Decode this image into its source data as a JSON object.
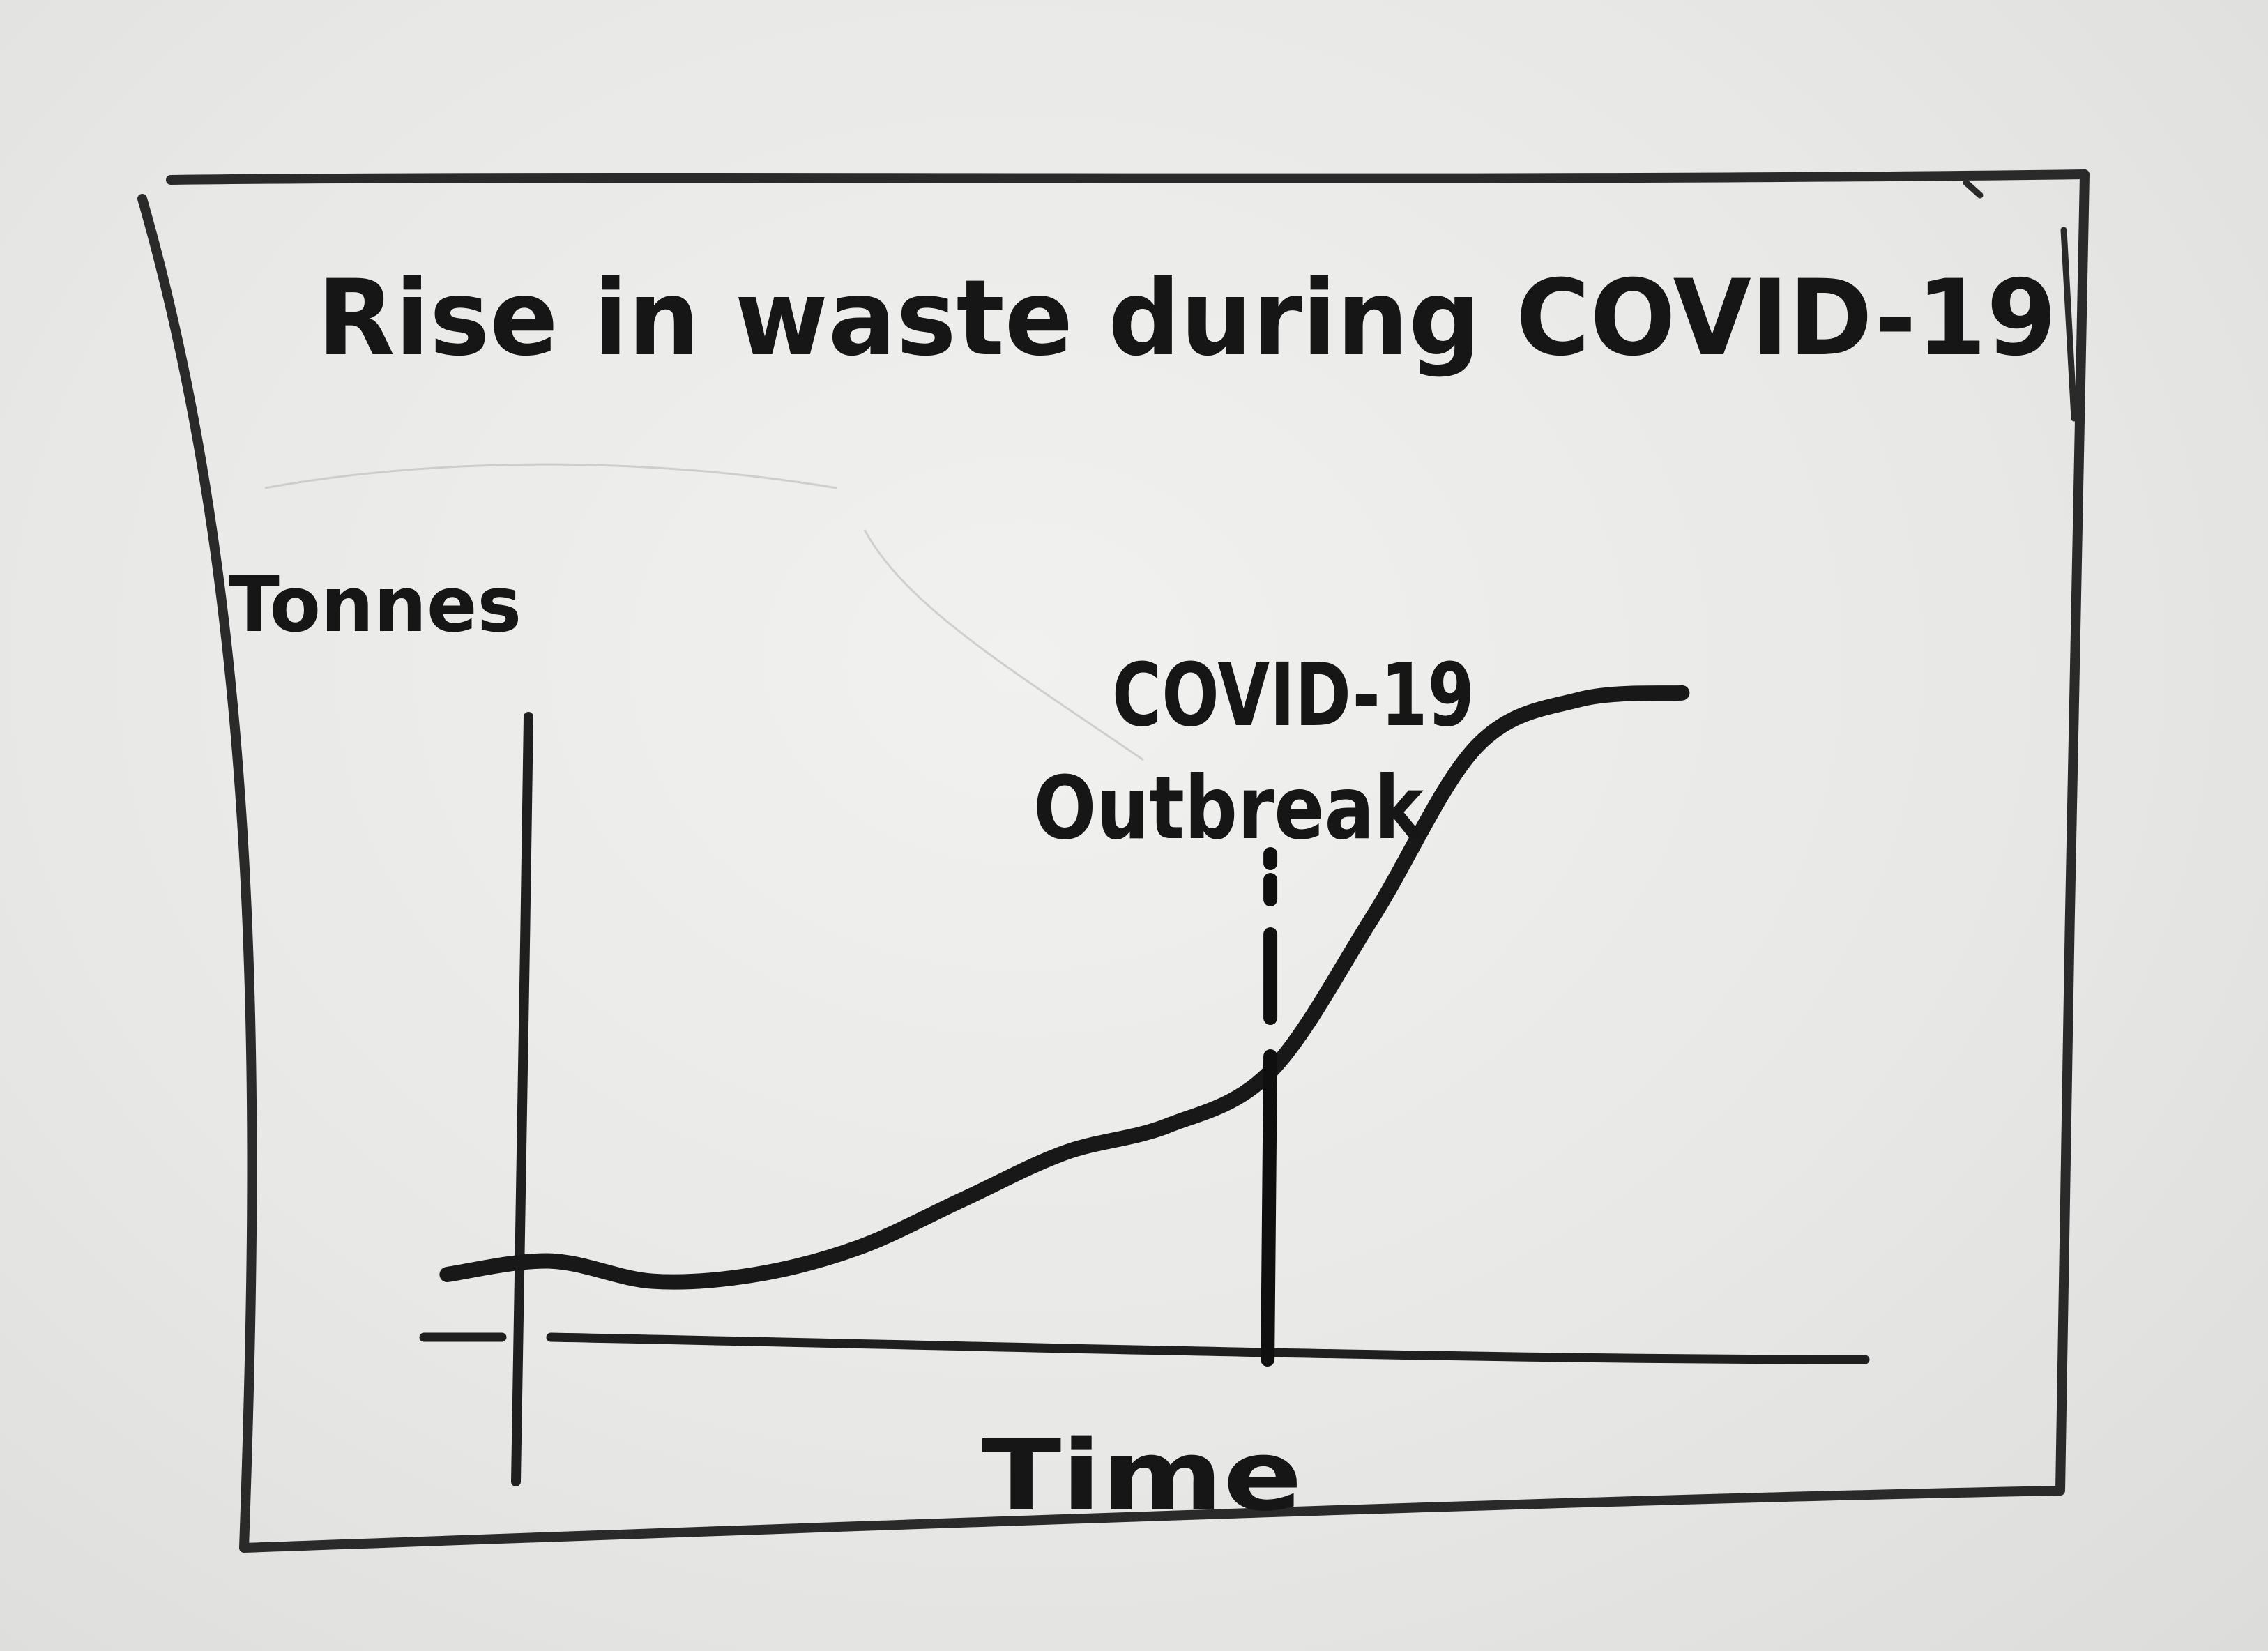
{
  "chart_data": {
    "type": "line",
    "title": "Rise in waste during COVID-19",
    "xlabel": "Time",
    "ylabel": "Tonnes",
    "grid": false,
    "legend": "none",
    "x": [
      0,
      1,
      2,
      3,
      4,
      5,
      6,
      7,
      8,
      9,
      10,
      11,
      12
    ],
    "y": [
      10,
      12,
      9,
      10,
      14,
      21,
      28,
      32,
      40,
      63,
      88,
      95,
      96
    ],
    "ylim": [
      0,
      100
    ],
    "xlim": [
      -1.5,
      13
    ],
    "annotations": [
      {
        "text_line1": "COVID-19",
        "text_line2": "Outbreak",
        "x": 8,
        "kind": "vertical-line"
      }
    ]
  },
  "colors": {
    "ink": "#161616",
    "board": "#ececea",
    "frame": "#2a2a2a"
  }
}
